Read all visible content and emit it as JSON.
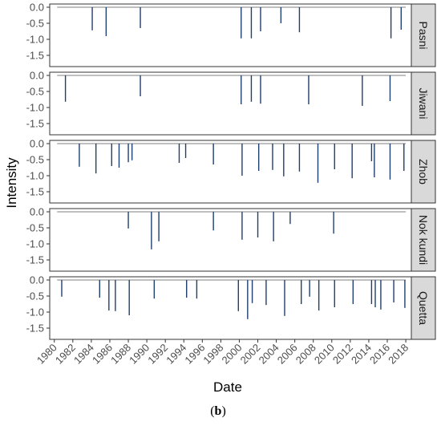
{
  "chart_data": {
    "type": "bar",
    "xlabel": "Date",
    "ylabel": "Intensity",
    "caption_open": "(",
    "caption_bold": "b",
    "caption_close": ")",
    "xlim": [
      1979.5,
      2018.6
    ],
    "ylim": [
      -1.85,
      0.1
    ],
    "x_ticks": [
      1980,
      1982,
      1984,
      1986,
      1988,
      1990,
      1992,
      1994,
      1996,
      1998,
      2000,
      2002,
      2004,
      2006,
      2008,
      2010,
      2012,
      2014,
      2016,
      2018
    ],
    "y_ticks": [
      0.0,
      -0.5,
      -1.0,
      -1.5
    ],
    "y_tick_labels": [
      "0.0",
      "-0.5",
      "-1.0",
      "-1.5"
    ],
    "baseline_range": [
      1980.3,
      2018.0
    ],
    "line_color": "#1f3f6e",
    "baseline_color": "#7f7f7f",
    "strip_fill": "#d9d9d9",
    "panels": [
      {
        "name": "Pasni",
        "events": [
          {
            "x": 1984.1,
            "y": -0.72
          },
          {
            "x": 1985.6,
            "y": -0.9
          },
          {
            "x": 1989.3,
            "y": -0.65
          },
          {
            "x": 2000.2,
            "y": -0.97
          },
          {
            "x": 2001.3,
            "y": -0.97
          },
          {
            "x": 2002.3,
            "y": -0.75
          },
          {
            "x": 2004.5,
            "y": -0.5
          },
          {
            "x": 2006.5,
            "y": -0.78
          },
          {
            "x": 2016.4,
            "y": -0.97
          },
          {
            "x": 2017.5,
            "y": -0.7
          }
        ]
      },
      {
        "name": "Jiwani",
        "events": [
          {
            "x": 1981.2,
            "y": -0.82
          },
          {
            "x": 1989.3,
            "y": -0.65
          },
          {
            "x": 2000.2,
            "y": -0.9
          },
          {
            "x": 2001.3,
            "y": -0.82
          },
          {
            "x": 2002.3,
            "y": -0.88
          },
          {
            "x": 2007.5,
            "y": -0.9
          },
          {
            "x": 2013.3,
            "y": -0.95
          },
          {
            "x": 2016.3,
            "y": -0.8
          }
        ]
      },
      {
        "name": "Zhob",
        "events": [
          {
            "x": 1982.7,
            "y": -0.72
          },
          {
            "x": 1984.5,
            "y": -0.93
          },
          {
            "x": 1986.2,
            "y": -0.7
          },
          {
            "x": 1987.0,
            "y": -0.75
          },
          {
            "x": 1988.0,
            "y": -0.58
          },
          {
            "x": 1988.4,
            "y": -0.52
          },
          {
            "x": 1993.5,
            "y": -0.6
          },
          {
            "x": 1994.2,
            "y": -0.45
          },
          {
            "x": 1997.2,
            "y": -0.65
          },
          {
            "x": 2000.3,
            "y": -1.0
          },
          {
            "x": 2002.1,
            "y": -0.85
          },
          {
            "x": 2003.6,
            "y": -0.82
          },
          {
            "x": 2004.8,
            "y": -1.02
          },
          {
            "x": 2006.5,
            "y": -0.87
          },
          {
            "x": 2008.5,
            "y": -1.22
          },
          {
            "x": 2010.3,
            "y": -0.8
          },
          {
            "x": 2012.2,
            "y": -1.08
          },
          {
            "x": 2014.3,
            "y": -0.55
          },
          {
            "x": 2014.6,
            "y": -1.05
          },
          {
            "x": 2016.3,
            "y": -1.12
          },
          {
            "x": 2017.8,
            "y": -0.85
          }
        ]
      },
      {
        "name": "Nok kundi",
        "events": [
          {
            "x": 1988.0,
            "y": -0.52
          },
          {
            "x": 1990.5,
            "y": -1.17
          },
          {
            "x": 1991.3,
            "y": -0.92
          },
          {
            "x": 1997.2,
            "y": -0.58
          },
          {
            "x": 2000.3,
            "y": -0.87
          },
          {
            "x": 2002.0,
            "y": -0.8
          },
          {
            "x": 2003.7,
            "y": -0.92
          },
          {
            "x": 2005.5,
            "y": -0.38
          },
          {
            "x": 2010.2,
            "y": -0.68
          }
        ]
      },
      {
        "name": "Quetta",
        "events": [
          {
            "x": 1980.8,
            "y": -0.52
          },
          {
            "x": 1984.9,
            "y": -0.55
          },
          {
            "x": 1985.9,
            "y": -0.95
          },
          {
            "x": 1986.6,
            "y": -0.97
          },
          {
            "x": 1988.1,
            "y": -1.1
          },
          {
            "x": 1990.8,
            "y": -0.58
          },
          {
            "x": 1994.3,
            "y": -0.55
          },
          {
            "x": 1995.4,
            "y": -0.58
          },
          {
            "x": 1999.9,
            "y": -0.97
          },
          {
            "x": 2000.9,
            "y": -1.22
          },
          {
            "x": 2001.4,
            "y": -0.72
          },
          {
            "x": 2002.9,
            "y": -0.78
          },
          {
            "x": 2004.9,
            "y": -1.12
          },
          {
            "x": 2006.7,
            "y": -0.75
          },
          {
            "x": 2007.6,
            "y": -0.52
          },
          {
            "x": 2008.6,
            "y": -0.95
          },
          {
            "x": 2010.3,
            "y": -0.85
          },
          {
            "x": 2012.3,
            "y": -0.75
          },
          {
            "x": 2014.3,
            "y": -0.75
          },
          {
            "x": 2014.7,
            "y": -0.85
          },
          {
            "x": 2015.3,
            "y": -0.92
          },
          {
            "x": 2016.7,
            "y": -0.7
          },
          {
            "x": 2017.9,
            "y": -0.87
          }
        ]
      }
    ]
  }
}
